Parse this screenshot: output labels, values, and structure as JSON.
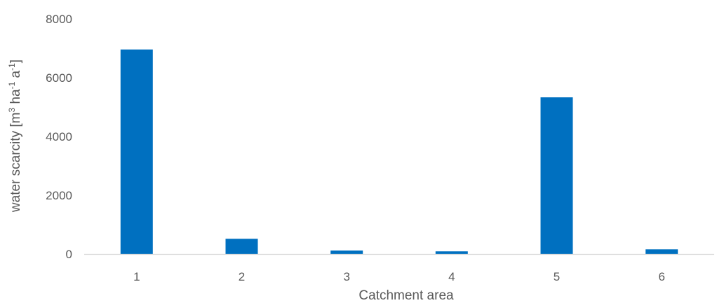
{
  "chart_data": {
    "type": "bar",
    "categories": [
      "1",
      "2",
      "3",
      "4",
      "5",
      "6"
    ],
    "values": [
      6960,
      520,
      120,
      90,
      5330,
      160
    ],
    "xlabel": "Catchment area",
    "ylabel": {
      "text": "water scarcity [m",
      "sup1": "3",
      "mid1": " ha",
      "sup2": "-1",
      "mid2": " a",
      "sup3": "-1",
      "end": "]"
    },
    "ylim": [
      0,
      8000
    ],
    "yticks": [
      "0",
      "2000",
      "4000",
      "6000",
      "8000"
    ],
    "grid": false,
    "legend": "none",
    "colors": {
      "bar": "#0070C0",
      "axis": "#D9D9D9",
      "text": "#595959"
    }
  }
}
